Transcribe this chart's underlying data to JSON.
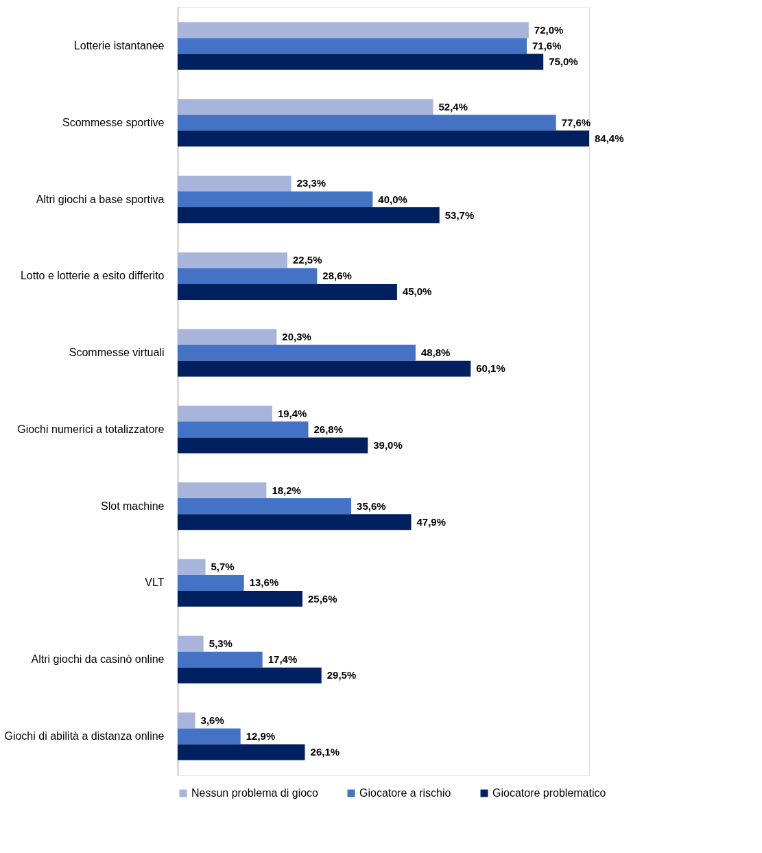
{
  "chart_data": {
    "type": "bar",
    "orientation": "horizontal",
    "legend": "bottom",
    "grid": false,
    "data_labels": true,
    "categories": [
      "Lotterie istantanee",
      "Scommesse sportive",
      "Altri giochi a base sportiva",
      "Lotto e lotterie a esito differito",
      "Scommesse virtuali",
      "Giochi numerici a totalizzatore",
      "Slot machine",
      "VLT",
      "Altri giochi da casinò online",
      "Giochi di abilità a distanza online"
    ],
    "series": [
      {
        "name": "Nessun problema di gioco",
        "color": "#a9b4da",
        "values": [
          72.0,
          52.4,
          23.3,
          22.5,
          20.3,
          19.4,
          18.2,
          5.7,
          5.3,
          3.6
        ],
        "value_labels": [
          "72,0%",
          "52,4%",
          "23,3%",
          "22,5%",
          "20,3%",
          "19,4%",
          "18,2%",
          "5,7%",
          "5,3%",
          "3,6%"
        ]
      },
      {
        "name": "Giocatore a rischio",
        "color": "#4472c4",
        "values": [
          71.6,
          77.6,
          40.0,
          28.6,
          48.8,
          26.8,
          35.6,
          13.6,
          17.4,
          12.9
        ],
        "value_labels": [
          "71,6%",
          "77,6%",
          "40,0%",
          "28,6%",
          "48,8%",
          "26,8%",
          "35,6%",
          "13,6%",
          "17,4%",
          "12,9%"
        ]
      },
      {
        "name": "Giocatore problematico",
        "color": "#002060",
        "values": [
          75.0,
          84.4,
          53.7,
          45.0,
          60.1,
          39.0,
          47.9,
          25.6,
          29.5,
          26.1
        ],
        "value_labels": [
          "75,0%",
          "84,4%",
          "53,7%",
          "45,0%",
          "60,1%",
          "39,0%",
          "47,9%",
          "25,6%",
          "29,5%",
          "26,1%"
        ]
      }
    ]
  }
}
